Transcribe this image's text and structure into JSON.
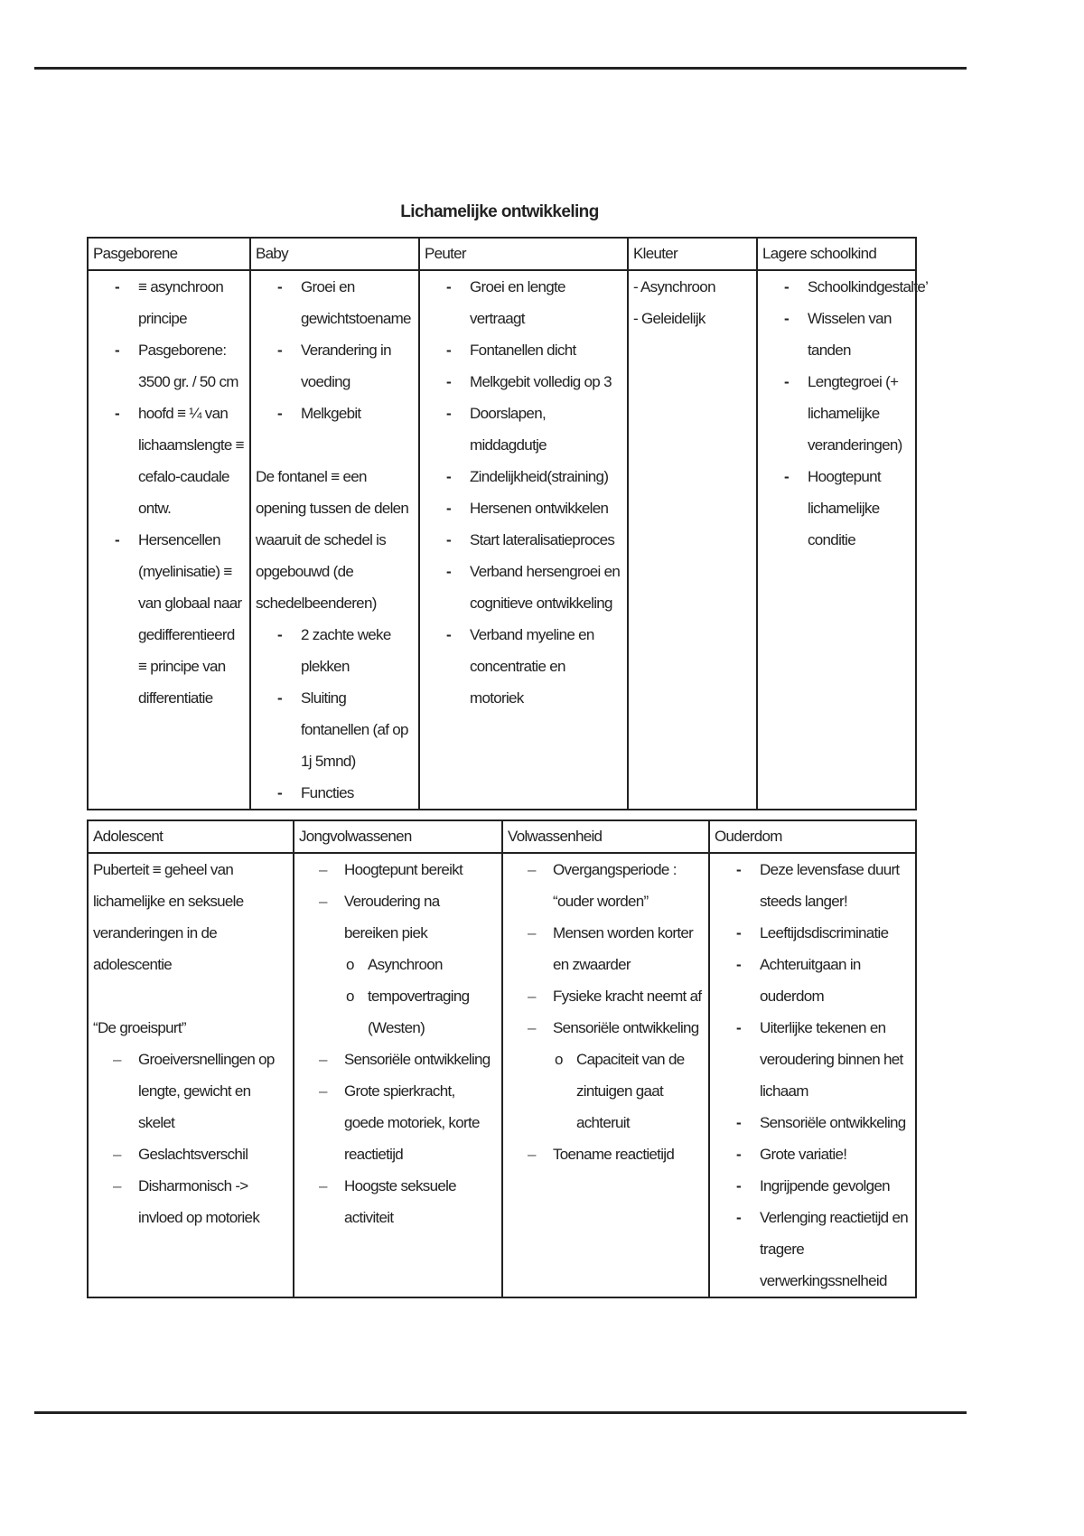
{
  "title": "Lichamelijke ontwikkeling",
  "table1": {
    "columns": [
      {
        "header": "Pasgeborene",
        "blocks": [
          {
            "type": "dash",
            "items": [
              "≡ asynchroon principe",
              "Pasgeborene: 3500 gr. / 50 cm",
              "hoofd ≡ ¼ van lichaamslengte ≡ cefalo-caudale ontw.",
              "Hersencellen (myelinisatie) ≡ van globaal naar gedifferentieerd ≡ principe van differentiatie"
            ]
          }
        ]
      },
      {
        "header": "Baby",
        "blocks": [
          {
            "type": "dash",
            "items": [
              "Groei en gewichtstoename",
              "Verandering in voeding",
              "Melkgebit"
            ]
          },
          {
            "type": "gap"
          },
          {
            "type": "para",
            "text": "De fontanel ≡ een opening tussen de delen waaruit de schedel is opgebouwd (de schedelbeenderen)"
          },
          {
            "type": "dash",
            "items": [
              "2 zachte weke plekken",
              "Sluiting fontanellen (af op 1j 5mnd)",
              "Functies"
            ]
          }
        ]
      },
      {
        "header": "Peuter",
        "blocks": [
          {
            "type": "dash",
            "items": [
              "Groei en lengte vertraagt",
              "Fontanellen dicht",
              "Melkgebit volledig op 3",
              "Doorslapen, middagdutje",
              "Zindelijkheid(straining)",
              "Hersenen ontwikkelen",
              "Start lateralisatieproces",
              "Verband hersengroei en cognitieve ontwikkeling",
              "Verband myeline en concentratie en motoriek"
            ]
          }
        ]
      },
      {
        "header": "Kleuter",
        "blocks": [
          {
            "type": "para",
            "text": "- Asynchroon"
          },
          {
            "type": "para",
            "text": "- Geleidelijk"
          }
        ]
      },
      {
        "header": "Lagere schoolkind",
        "blocks": [
          {
            "type": "dash",
            "items": [
              "Schoolkindgestalte’",
              "Wisselen van tanden",
              "Lengtegroei (+ lichamelijke veranderingen)",
              "Hoogtepunt lichamelijke conditie"
            ]
          }
        ]
      }
    ]
  },
  "table2": {
    "columns": [
      {
        "header": "Adolescent",
        "blocks": [
          {
            "type": "para",
            "text": "Puberteit ≡ geheel van lichamelijke en seksuele veranderingen in de adolescentie"
          },
          {
            "type": "gap"
          },
          {
            "type": "para",
            "text": "“De groeispurt”"
          },
          {
            "type": "endash",
            "items": [
              "Groeiversnellingen op lengte, gewicht en skelet",
              "Geslachtsverschil",
              "Disharmonisch -> invloed op motoriek"
            ]
          }
        ]
      },
      {
        "header": "Jongvolwassenen",
        "blocks": [
          {
            "type": "endash",
            "items": [
              "Hoogtepunt bereikt",
              "Veroudering na bereiken piek"
            ]
          },
          {
            "type": "circle",
            "items": [
              "Asynchroon",
              "tempovertraging (Westen)"
            ]
          },
          {
            "type": "endash",
            "items": [
              "Sensoriële ontwikkeling",
              "Grote spierkracht, goede motoriek, korte reactietijd",
              "Hoogste seksuele activiteit"
            ]
          }
        ]
      },
      {
        "header": "Volwassenheid",
        "blocks": [
          {
            "type": "endash",
            "items": [
              "Overgangsperiode : “ouder worden”",
              "Mensen worden korter en zwaarder",
              "Fysieke kracht neemt af",
              "Sensoriële ontwikkeling"
            ]
          },
          {
            "type": "circle",
            "items": [
              "Capaciteit van de zintuigen gaat achteruit"
            ]
          },
          {
            "type": "endash",
            "items": [
              "Toename reactietijd"
            ]
          }
        ]
      },
      {
        "header": "Ouderdom",
        "blocks": [
          {
            "type": "dash",
            "items": [
              "Deze levensfase duurt steeds langer!",
              "Leeftijdsdiscriminatie",
              "Achteruitgaan in ouderdom",
              "Uiterlijke tekenen en veroudering binnen het lichaam",
              "Sensoriële ontwikkeling",
              "Grote variatie!",
              "Ingrijpende gevolgen",
              "Verlenging reactietijd en tragere verwerkingssnelheid"
            ]
          }
        ]
      }
    ]
  }
}
